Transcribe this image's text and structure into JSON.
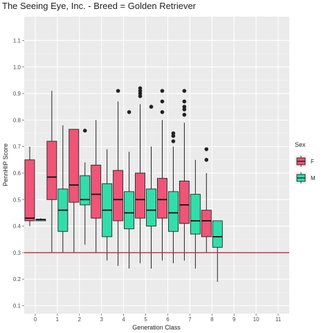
{
  "chart_data": {
    "type": "boxplot",
    "title": "The Seeing Eye, Inc. - Breed = Golden Retriever",
    "xlabel": "Generation Class",
    "ylabel": "PennHIP Score",
    "categories": [
      "0",
      "1",
      "2",
      "3",
      "4",
      "5",
      "6",
      "7",
      "8",
      "9",
      "10",
      "11"
    ],
    "y_ticks": [
      "0.1",
      "0.2",
      "0.3",
      "0.4",
      "0.5",
      "0.6",
      "0.7",
      "0.8",
      "0.9",
      "1.0",
      "1.1"
    ],
    "ylim": [
      0.07,
      1.19
    ],
    "grid": true,
    "legend": {
      "title": "Sex",
      "position": "right"
    },
    "reference_line": {
      "y": 0.3,
      "color": "#cc2233"
    },
    "series": [
      {
        "name": "F",
        "color": "#ee5577",
        "boxes": [
          {
            "x": "0",
            "whisker_low": 0.4,
            "q1": 0.42,
            "median": 0.43,
            "q3": 0.65,
            "whisker_high": 0.7,
            "outliers": []
          },
          {
            "x": "1",
            "whisker_low": 0.3,
            "q1": 0.5,
            "median": 0.585,
            "q3": 0.72,
            "whisker_high": 0.91,
            "outliers": []
          },
          {
            "x": "2",
            "whisker_low": 0.3,
            "q1": 0.49,
            "median": 0.555,
            "q3": 0.765,
            "whisker_high": 0.765,
            "outliers": []
          },
          {
            "x": "3",
            "whisker_low": 0.3,
            "q1": 0.43,
            "median": 0.52,
            "q3": 0.63,
            "whisker_high": 0.8,
            "outliers": []
          },
          {
            "x": "4",
            "whisker_low": 0.25,
            "q1": 0.42,
            "median": 0.5,
            "q3": 0.61,
            "whisker_high": 0.87,
            "outliers": [
              0.91
            ]
          },
          {
            "x": "5",
            "whisker_low": 0.26,
            "q1": 0.43,
            "median": 0.5,
            "q3": 0.6,
            "whisker_high": 0.86,
            "outliers": [
              0.89,
              0.9,
              0.91,
              0.92
            ]
          },
          {
            "x": "6",
            "whisker_low": 0.27,
            "q1": 0.43,
            "median": 0.5,
            "q3": 0.58,
            "whisker_high": 0.8,
            "outliers": [
              0.83,
              0.87,
              0.91
            ]
          },
          {
            "x": "7",
            "whisker_low": 0.27,
            "q1": 0.41,
            "median": 0.48,
            "q3": 0.57,
            "whisker_high": 0.79,
            "outliers": [
              0.82,
              0.84,
              0.85,
              0.87,
              0.91
            ]
          },
          {
            "x": "8",
            "whisker_low": 0.3,
            "q1": 0.36,
            "median": 0.42,
            "q3": 0.46,
            "whisker_high": 0.6,
            "outliers": [
              0.65,
              0.69
            ]
          }
        ]
      },
      {
        "name": "M",
        "color": "#33ddaa",
        "boxes": [
          {
            "x": "0",
            "whisker_low": 0.42,
            "q1": 0.42,
            "median": 0.425,
            "q3": 0.425,
            "whisker_high": 0.43,
            "outliers": []
          },
          {
            "x": "1",
            "whisker_low": 0.3,
            "q1": 0.38,
            "median": 0.46,
            "q3": 0.54,
            "whisker_high": 0.78,
            "outliers": []
          },
          {
            "x": "2",
            "whisker_low": 0.33,
            "q1": 0.48,
            "median": 0.5,
            "q3": 0.59,
            "whisker_high": 0.64,
            "outliers": [
              0.76
            ]
          },
          {
            "x": "3",
            "whisker_low": 0.27,
            "q1": 0.36,
            "median": 0.46,
            "q3": 0.56,
            "whisker_high": 0.69,
            "outliers": []
          },
          {
            "x": "4",
            "whisker_low": 0.24,
            "q1": 0.39,
            "median": 0.45,
            "q3": 0.53,
            "whisker_high": 0.68,
            "outliers": [
              0.83
            ]
          },
          {
            "x": "5",
            "whisker_low": 0.24,
            "q1": 0.4,
            "median": 0.46,
            "q3": 0.54,
            "whisker_high": 0.7,
            "outliers": [
              0.85
            ]
          },
          {
            "x": "6",
            "whisker_low": 0.26,
            "q1": 0.38,
            "median": 0.45,
            "q3": 0.53,
            "whisker_high": 0.7,
            "outliers": [
              0.72,
              0.74,
              0.75
            ]
          },
          {
            "x": "7",
            "whisker_low": 0.24,
            "q1": 0.37,
            "median": 0.42,
            "q3": 0.52,
            "whisker_high": 0.65,
            "outliers": []
          },
          {
            "x": "8",
            "whisker_low": 0.19,
            "q1": 0.32,
            "median": 0.36,
            "q3": 0.42,
            "whisker_high": 0.42,
            "outliers": []
          }
        ]
      }
    ]
  }
}
